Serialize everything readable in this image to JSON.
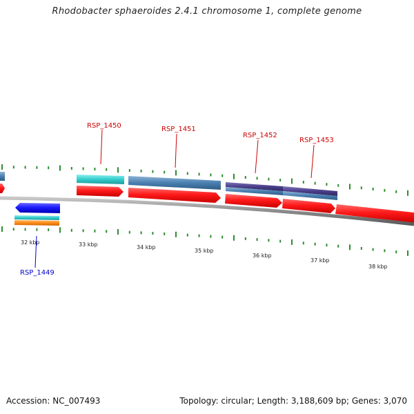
{
  "title": "Rhodobacter sphaeroides 2.4.1 chromosome 1, complete genome",
  "accession_label": "Accession: NC_007493",
  "stats_label": "Topology: circular; Length: 3,188,609 bp; Genes: 3,070",
  "colors": {
    "backbone": "#8c8c8c",
    "tick": "#2e8b2e",
    "gene_forward": "#ff1a1a",
    "gene_reverse": "#1a1aff",
    "cds_cyan": "#33cccc",
    "cds_steel": "#4a7fb0",
    "cds_indigo": "#4b3f8a",
    "cds_orange": "#ff8c1a",
    "label_forward": "#cc0000",
    "label_reverse": "#0000cc",
    "label_line": "#cc0000"
  },
  "kbp_ticks": [
    "32 kbp",
    "33 kbp",
    "34 kbp",
    "35 kbp",
    "36 kbp",
    "37 kbp",
    "38 kbp"
  ],
  "gene_labels": [
    {
      "text": "RSP_1450",
      "strand": "forward"
    },
    {
      "text": "RSP_1451",
      "strand": "forward"
    },
    {
      "text": "RSP_1452",
      "strand": "forward"
    },
    {
      "text": "RSP_1453",
      "strand": "forward"
    },
    {
      "text": "RSP_1449",
      "strand": "reverse"
    }
  ]
}
